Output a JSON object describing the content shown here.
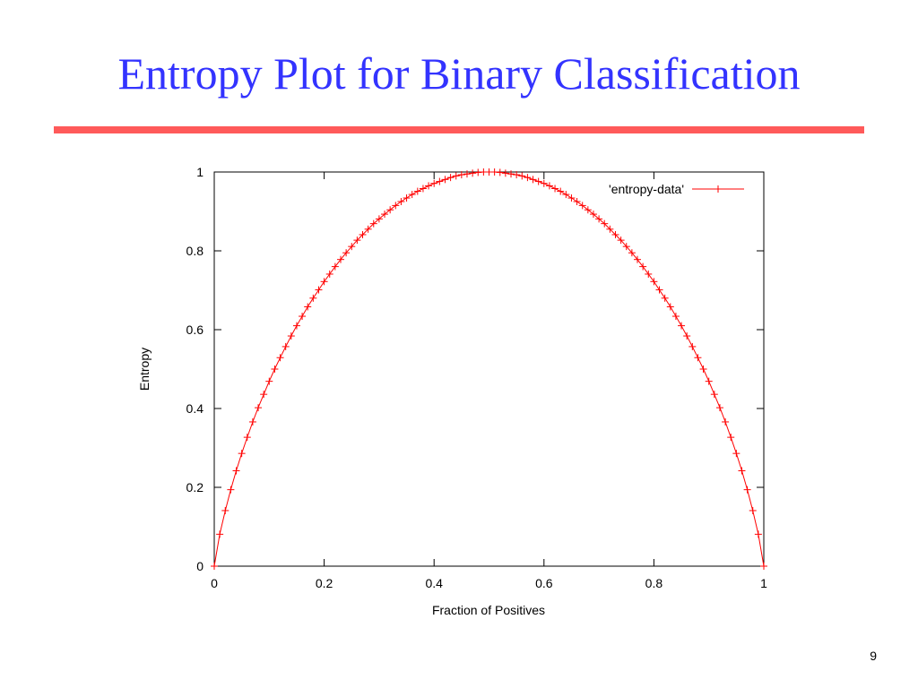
{
  "slide": {
    "title": "Entropy Plot for Binary Classification",
    "page_number": "9",
    "rule_color": "#ff5a5a",
    "title_color": "#3333ff"
  },
  "chart_data": {
    "type": "line",
    "title": "",
    "xlabel": "Fraction of Positives",
    "ylabel": "Entropy",
    "xlim": [
      0,
      1
    ],
    "ylim": [
      0,
      1
    ],
    "x_ticks": [
      "0",
      "0.2",
      "0.4",
      "0.6",
      "0.8",
      "1"
    ],
    "y_ticks": [
      "0",
      "0.2",
      "0.4",
      "0.6",
      "0.8",
      "1"
    ],
    "grid": false,
    "legend_position": "top-right",
    "series": [
      {
        "name": "'entropy-data'",
        "color": "#ff0000",
        "marker": "plus",
        "x": [
          0,
          0.01,
          0.02,
          0.03,
          0.04,
          0.05,
          0.06,
          0.07,
          0.08,
          0.09,
          0.1,
          0.11,
          0.12,
          0.13,
          0.14,
          0.15,
          0.16,
          0.17,
          0.18,
          0.19,
          0.2,
          0.21,
          0.22,
          0.23,
          0.24,
          0.25,
          0.26,
          0.27,
          0.28,
          0.29,
          0.3,
          0.31,
          0.32,
          0.33,
          0.34,
          0.35,
          0.36,
          0.37,
          0.38,
          0.39,
          0.4,
          0.41,
          0.42,
          0.43,
          0.44,
          0.45,
          0.46,
          0.47,
          0.48,
          0.49,
          0.5,
          0.51,
          0.52,
          0.53,
          0.54,
          0.55,
          0.56,
          0.57,
          0.58,
          0.59,
          0.6,
          0.61,
          0.62,
          0.63,
          0.64,
          0.65,
          0.66,
          0.67,
          0.68,
          0.69,
          0.7,
          0.71,
          0.72,
          0.73,
          0.74,
          0.75,
          0.76,
          0.77,
          0.78,
          0.79,
          0.8,
          0.81,
          0.82,
          0.83,
          0.84,
          0.85,
          0.86,
          0.87,
          0.88,
          0.89,
          0.9,
          0.91,
          0.92,
          0.93,
          0.94,
          0.95,
          0.96,
          0.97,
          0.98,
          0.99,
          1
        ],
        "y": [
          0,
          0.081,
          0.141,
          0.194,
          0.242,
          0.286,
          0.327,
          0.366,
          0.402,
          0.436,
          0.469,
          0.5,
          0.529,
          0.557,
          0.584,
          0.61,
          0.634,
          0.658,
          0.68,
          0.701,
          0.722,
          0.741,
          0.76,
          0.778,
          0.795,
          0.811,
          0.827,
          0.841,
          0.855,
          0.869,
          0.881,
          0.893,
          0.904,
          0.915,
          0.925,
          0.934,
          0.943,
          0.951,
          0.958,
          0.965,
          0.971,
          0.976,
          0.981,
          0.986,
          0.99,
          0.993,
          0.995,
          0.997,
          0.999,
          1.0,
          1.0,
          1.0,
          0.999,
          0.997,
          0.995,
          0.993,
          0.99,
          0.986,
          0.981,
          0.976,
          0.971,
          0.965,
          0.958,
          0.951,
          0.943,
          0.934,
          0.925,
          0.915,
          0.904,
          0.893,
          0.881,
          0.869,
          0.855,
          0.841,
          0.827,
          0.811,
          0.795,
          0.778,
          0.76,
          0.741,
          0.722,
          0.701,
          0.68,
          0.658,
          0.634,
          0.61,
          0.584,
          0.557,
          0.529,
          0.5,
          0.469,
          0.436,
          0.402,
          0.366,
          0.327,
          0.286,
          0.242,
          0.194,
          0.141,
          0.081,
          0
        ]
      }
    ]
  }
}
